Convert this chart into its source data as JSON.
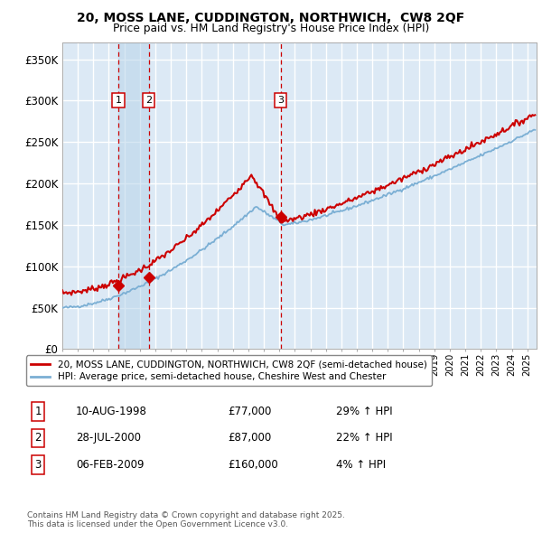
{
  "title_line1": "20, MOSS LANE, CUDDINGTON, NORTHWICH,  CW8 2QF",
  "title_line2": "Price paid vs. HM Land Registry's House Price Index (HPI)",
  "legend_label_red": "20, MOSS LANE, CUDDINGTON, NORTHWICH, CW8 2QF (semi-detached house)",
  "legend_label_blue": "HPI: Average price, semi-detached house, Cheshire West and Chester",
  "sale1_label": "1",
  "sale1_date": "10-AUG-1998",
  "sale1_price": "£77,000",
  "sale1_hpi": "29% ↑ HPI",
  "sale2_label": "2",
  "sale2_date": "28-JUL-2000",
  "sale2_price": "£87,000",
  "sale2_hpi": "22% ↑ HPI",
  "sale3_label": "3",
  "sale3_date": "06-FEB-2009",
  "sale3_price": "£160,000",
  "sale3_hpi": "4% ↑ HPI",
  "footer": "Contains HM Land Registry data © Crown copyright and database right 2025.\nThis data is licensed under the Open Government Licence v3.0.",
  "fig_bg_color": "#ffffff",
  "plot_bg_color": "#dce9f5",
  "grid_color": "#ffffff",
  "red_line_color": "#cc0000",
  "blue_line_color": "#7bafd4",
  "sale_dot_color": "#cc0000",
  "dashed_line_color": "#cc0000",
  "ylim": [
    0,
    370000
  ],
  "yticks": [
    0,
    50000,
    100000,
    150000,
    200000,
    250000,
    300000,
    350000
  ],
  "ytick_labels": [
    "£0",
    "£50K",
    "£100K",
    "£150K",
    "£200K",
    "£250K",
    "£300K",
    "£350K"
  ],
  "sale_dates_num": [
    1998.608,
    2000.572,
    2009.093
  ],
  "sale_prices": [
    77000,
    87000,
    160000
  ],
  "xmin": 1995,
  "xmax": 2025.6
}
